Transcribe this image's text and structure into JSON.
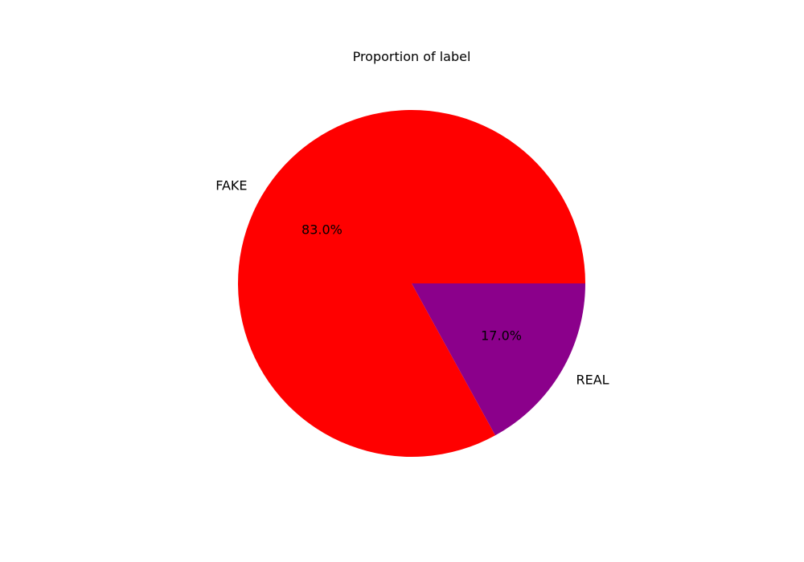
{
  "chart_data": {
    "type": "pie",
    "title": "Proportion of label",
    "slices": [
      {
        "label": "FAKE",
        "value": 83.0,
        "pct_label": "83.0%",
        "color": "#ff0000"
      },
      {
        "label": "REAL",
        "value": 17.0,
        "pct_label": "17.0%",
        "color": "#8b008b"
      }
    ],
    "start_angle": 0,
    "direction": "counterclockwise",
    "legend": false
  }
}
